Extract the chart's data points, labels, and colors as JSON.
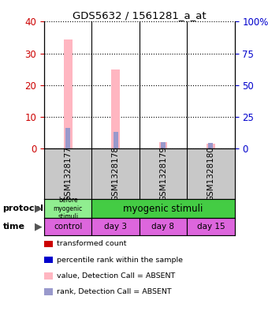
{
  "title": "GDS5632 / 1561281_a_at",
  "samples": [
    "GSM1328177",
    "GSM1328178",
    "GSM1328179",
    "GSM1328180"
  ],
  "absent_bar_values": [
    34.5,
    25.0,
    2.0,
    1.5
  ],
  "absent_rank_values": [
    16.0,
    13.0,
    4.5,
    4.0
  ],
  "ylim_left": [
    0,
    40
  ],
  "ylim_right": [
    0,
    100
  ],
  "yticks_left": [
    0,
    10,
    20,
    30,
    40
  ],
  "yticks_right": [
    0,
    25,
    50,
    75,
    100
  ],
  "ytick_labels_right": [
    "0",
    "25",
    "50",
    "75",
    "100%"
  ],
  "time_labels": [
    "control",
    "day 3",
    "day 8",
    "day 15"
  ],
  "protocol_color_before": "#90EE90",
  "protocol_color_myo": "#44CC44",
  "time_color": "#DD66DD",
  "sample_bg_color": "#C8C8C8",
  "absent_bar_color": "#FFB6C1",
  "absent_rank_color": "#9999CC",
  "left_tick_color": "#CC0000",
  "right_tick_color": "#0000CC",
  "legend_items": [
    {
      "color": "#CC0000",
      "label": "transformed count"
    },
    {
      "color": "#0000CC",
      "label": "percentile rank within the sample"
    },
    {
      "color": "#FFB6C1",
      "label": "value, Detection Call = ABSENT"
    },
    {
      "color": "#9999CC",
      "label": "rank, Detection Call = ABSENT"
    }
  ]
}
